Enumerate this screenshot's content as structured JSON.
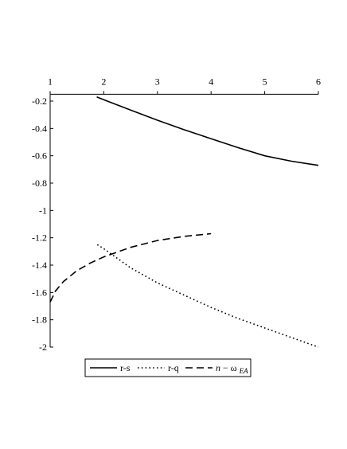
{
  "chart_data": {
    "type": "line",
    "title": "",
    "xlabel": "",
    "ylabel": "",
    "xlim": [
      1,
      6
    ],
    "ylim": [
      -2,
      -0.15
    ],
    "x_axis_position": "top",
    "grid": false,
    "legend_position": "bottom-center",
    "x_ticks": [
      "1",
      "2",
      "3",
      "4",
      "5",
      "6"
    ],
    "y_ticks": [
      "-0.2",
      "-0.4",
      "-0.6",
      "-0.8",
      "-1",
      "-1.2",
      "-1.4",
      "-1.6",
      "-1.8",
      "-2"
    ],
    "series": [
      {
        "name": "r-s",
        "style": "solid",
        "color": "#000000",
        "x": [
          1.87,
          2.0,
          2.5,
          3.0,
          3.5,
          4.0,
          4.5,
          5.0,
          5.5,
          6.0
        ],
        "y": [
          -0.17,
          -0.19,
          -0.265,
          -0.34,
          -0.41,
          -0.475,
          -0.54,
          -0.6,
          -0.64,
          -0.67
        ]
      },
      {
        "name": "r-q",
        "style": "dotted",
        "color": "#000000",
        "x": [
          1.88,
          2.0,
          2.5,
          3.0,
          3.5,
          4.0,
          4.5,
          5.0,
          5.5,
          6.0
        ],
        "y": [
          -1.25,
          -1.28,
          -1.42,
          -1.53,
          -1.62,
          -1.71,
          -1.79,
          -1.86,
          -1.93,
          -2.0
        ]
      },
      {
        "name_base": "n",
        "name_omega": "ω",
        "name_sub": "EA",
        "style": "dashed",
        "color": "#000000",
        "x": [
          1.0,
          1.1,
          1.25,
          1.5,
          1.75,
          2.0,
          2.5,
          3.0,
          3.5,
          4.0
        ],
        "y": [
          -1.67,
          -1.59,
          -1.52,
          -1.44,
          -1.385,
          -1.34,
          -1.27,
          -1.22,
          -1.19,
          -1.17
        ]
      }
    ]
  }
}
